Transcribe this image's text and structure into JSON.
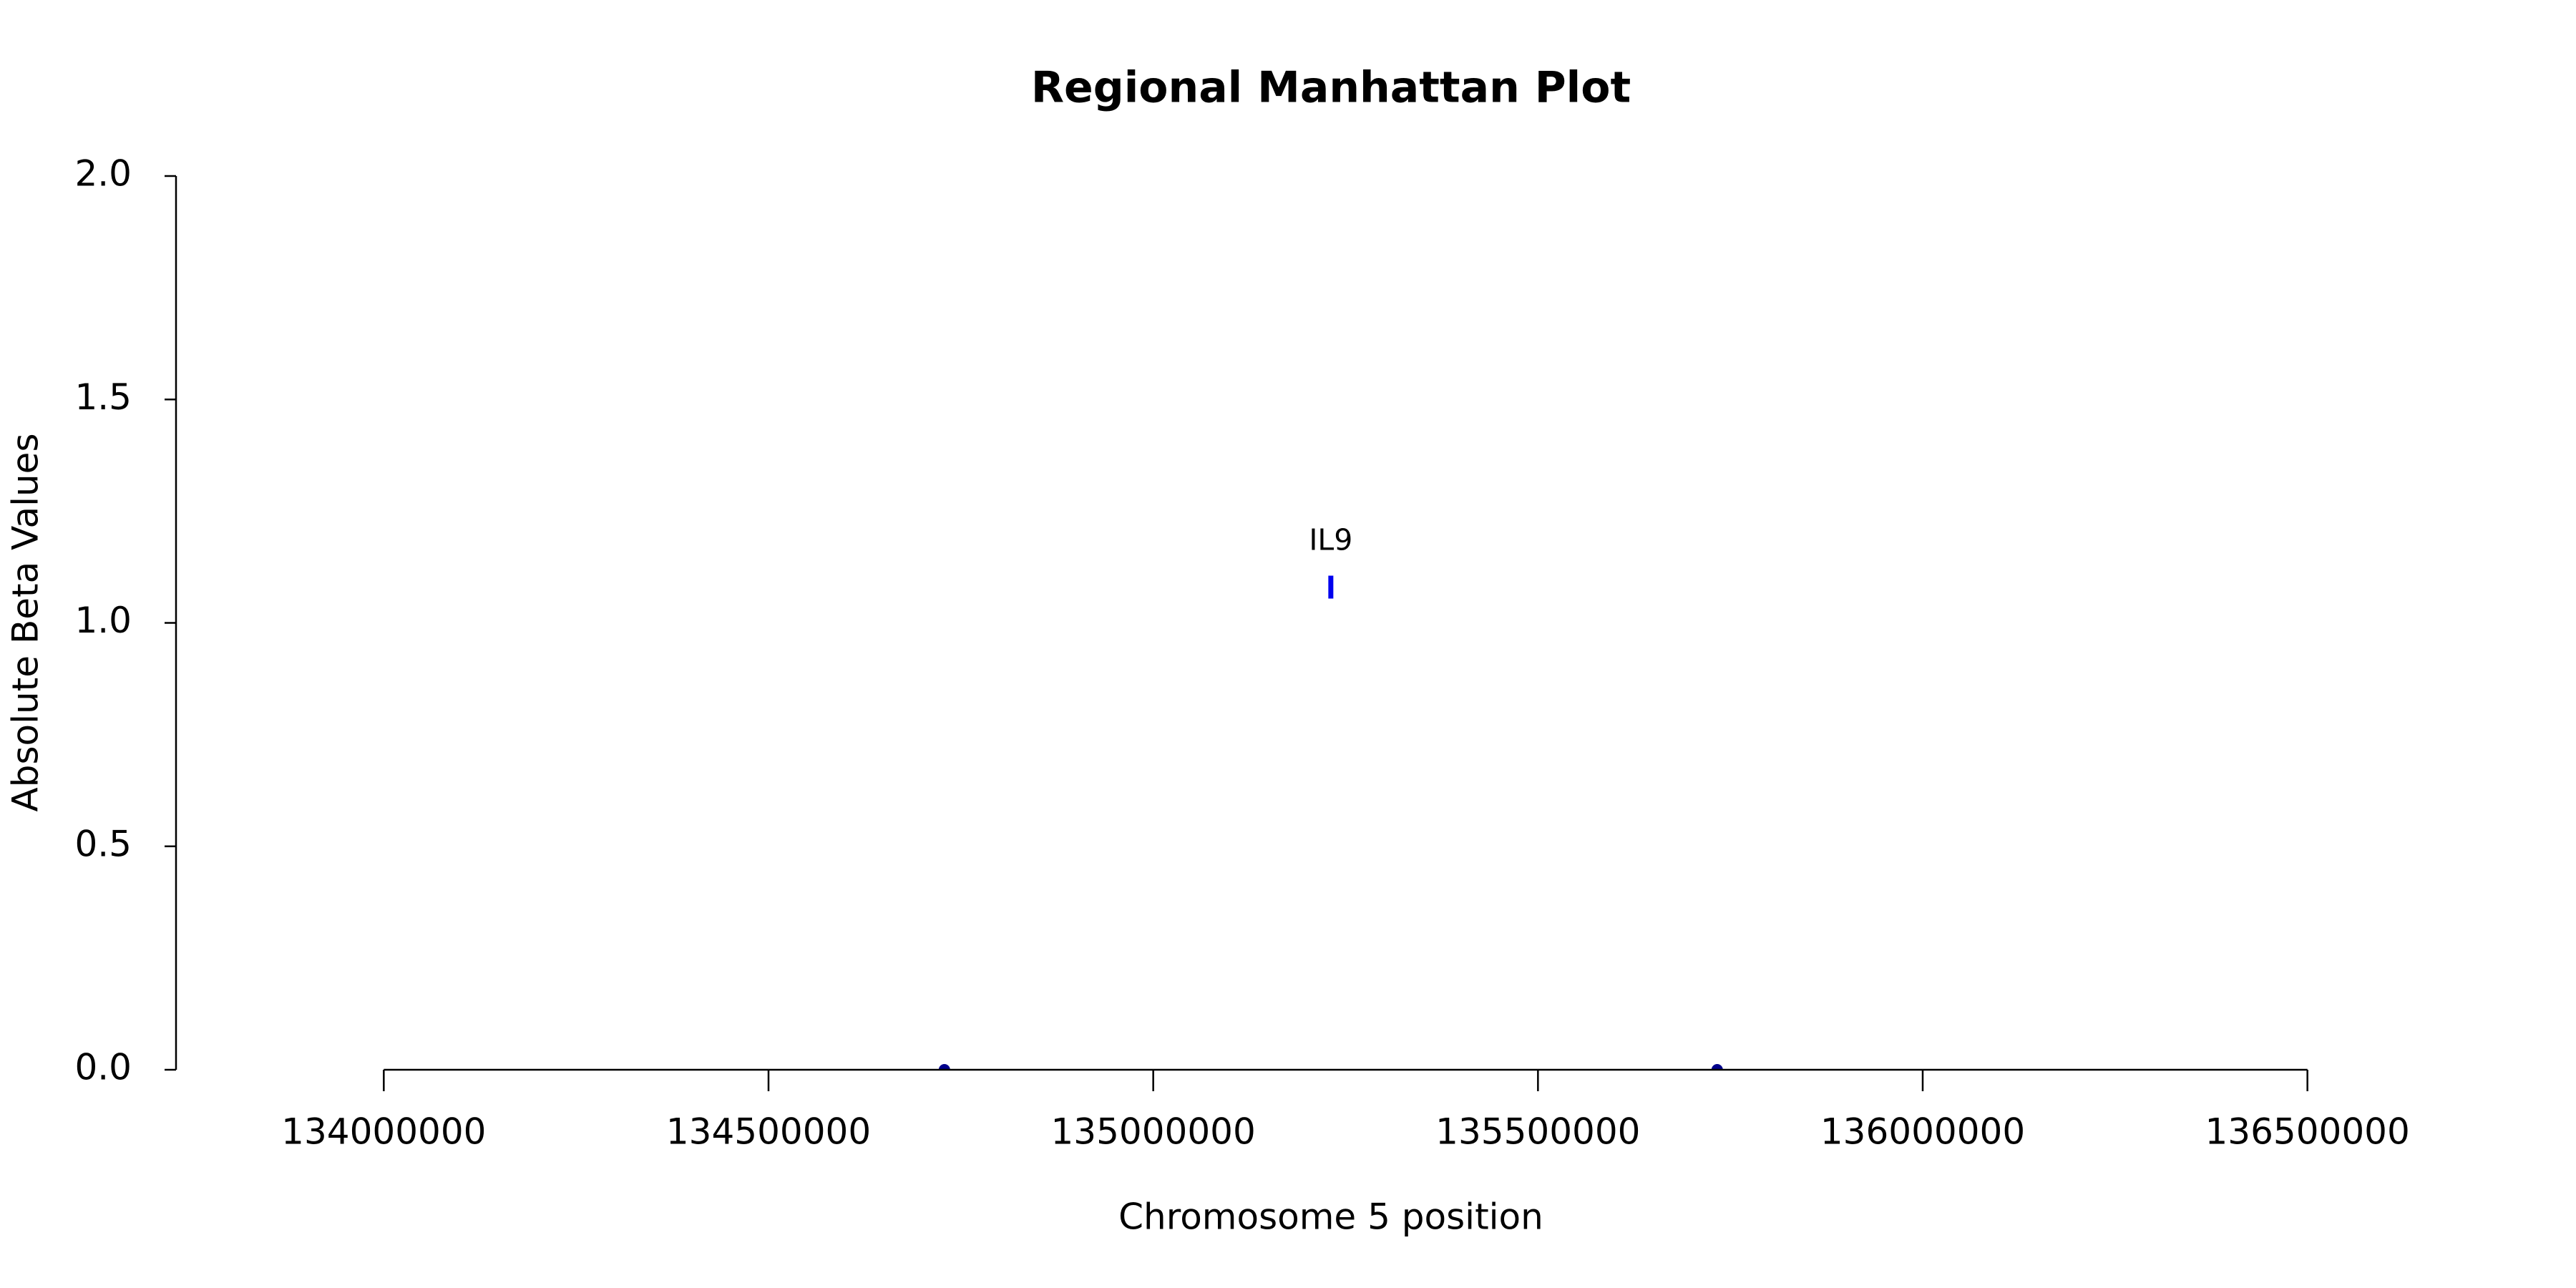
{
  "chart_data": {
    "type": "scatter",
    "title": "Regional Manhattan Plot",
    "x_label": "Chromosome 5 position",
    "y_label": "Absolute Beta Values",
    "x": [
      134728600,
      135230800,
      135732900
    ],
    "values": [
      0,
      1.08,
      0
    ],
    "colors": [
      "#00008b",
      "#0000ee",
      "#00008b"
    ],
    "markers": [
      "circle",
      "bar",
      "circle"
    ],
    "point_labels": [
      null,
      "IL9",
      null
    ],
    "xlim": [
      133730000,
      136770000
    ],
    "ylim": [
      0,
      2
    ],
    "xticks": [
      134000000,
      134500000,
      135000000,
      135500000,
      136000000,
      136500000
    ],
    "yticks": [
      {
        "value": 0,
        "label": "0.0"
      },
      {
        "value": 0.5,
        "label": "0.5"
      },
      {
        "value": 1,
        "label": "1.0"
      },
      {
        "value": 1.5,
        "label": "1.5"
      },
      {
        "value": 2,
        "label": "2.0"
      }
    ]
  }
}
